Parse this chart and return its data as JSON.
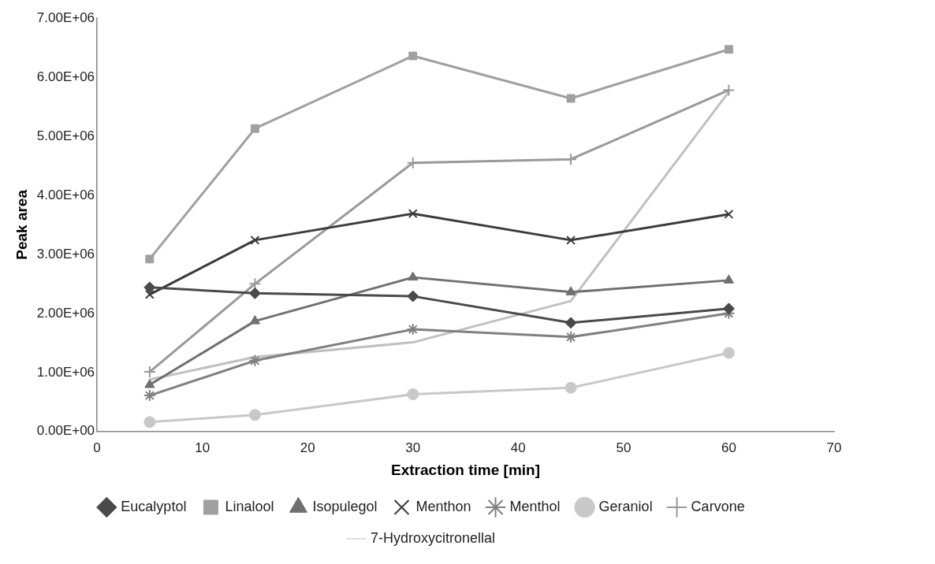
{
  "chart_data": {
    "type": "line",
    "xlabel": "Extraction time [min]",
    "ylabel": "Peak area",
    "x": [
      5,
      15,
      30,
      45,
      60
    ],
    "xlim": [
      0,
      70
    ],
    "xticks": [
      0,
      10,
      20,
      30,
      40,
      50,
      60,
      70
    ],
    "ylim": [
      0,
      7000000
    ],
    "yticks": [
      {
        "value": 0,
        "label": "0.00E+00"
      },
      {
        "value": 1000000,
        "label": "1.00E+06"
      },
      {
        "value": 2000000,
        "label": "2.00E+06"
      },
      {
        "value": 3000000,
        "label": "3.00E+06"
      },
      {
        "value": 4000000,
        "label": "4.00E+06"
      },
      {
        "value": 5000000,
        "label": "5.00E+06"
      },
      {
        "value": 6000000,
        "label": "6.00E+06"
      },
      {
        "value": 7000000,
        "label": "7.00E+06"
      }
    ],
    "grid": false,
    "legend": "bottom",
    "line_style": "solid",
    "series": [
      {
        "name": "Eucalyptol",
        "color": "#4a4a4a",
        "marker": "diamond",
        "values": [
          2440000,
          2340000,
          2290000,
          1840000,
          2080000
        ]
      },
      {
        "name": "Linalool",
        "color": "#a0a0a0",
        "marker": "square",
        "values": [
          2920000,
          5130000,
          6360000,
          5640000,
          6470000
        ]
      },
      {
        "name": "Isopulegol",
        "color": "#707070",
        "marker": "triangle",
        "values": [
          790000,
          1870000,
          2610000,
          2360000,
          2560000
        ]
      },
      {
        "name": "Menthon",
        "color": "#3c3c3c",
        "marker": "cross",
        "values": [
          2320000,
          3240000,
          3690000,
          3240000,
          3680000
        ]
      },
      {
        "name": "Menthol",
        "color": "#808080",
        "marker": "cross",
        "values": [
          610000,
          1200000,
          1730000,
          1600000,
          2000000
        ]
      },
      {
        "name": "Geraniol",
        "color": "#c8c8c8",
        "marker": "circle",
        "values": [
          160000,
          280000,
          630000,
          740000,
          1330000
        ]
      },
      {
        "name": "Carvone",
        "color": "#999999",
        "marker": "cross",
        "values": [
          1010000,
          2500000,
          4550000,
          4610000,
          5780000
        ]
      },
      {
        "name": "7-Hydroxycitronellal",
        "color": "#c0c0c0",
        "marker": "none",
        "values": [
          880000,
          1260000,
          1510000,
          2210000,
          5750000
        ]
      }
    ]
  }
}
